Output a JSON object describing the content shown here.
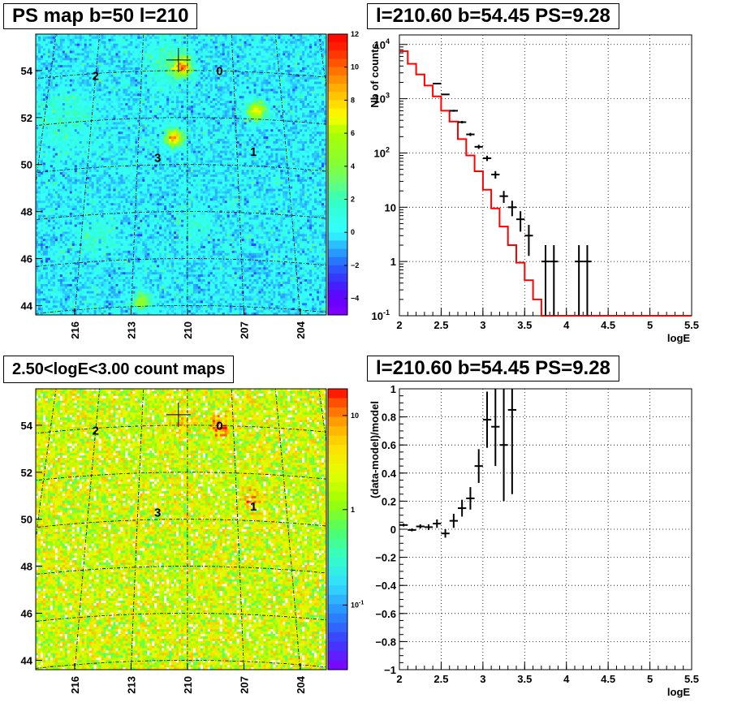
{
  "panels": {
    "tl_title": "PS map b=50 l=210",
    "tr_title": "l=210.60 b=54.45 PS=9.28",
    "bl_title": "2.50<logE<3.00 count maps",
    "br_title": "l=210.60 b=54.45 PS=9.28"
  },
  "colors": {
    "model_line": "#ff0000",
    "data_points": "#000000",
    "map_background": "#33ffff"
  },
  "chart_data": [
    {
      "type": "heatmap",
      "title": "PS map b=50 l=210",
      "x_ticks": [
        "216",
        "213",
        "210",
        "207",
        "204"
      ],
      "y_ticks": [
        "44",
        "46",
        "48",
        "50",
        "52",
        "54"
      ],
      "colorbar_ticks": [
        "12",
        "10",
        "8",
        "6",
        "4",
        "2",
        "0",
        "−2",
        "−4"
      ],
      "colorbar_range": [
        -5,
        12
      ],
      "regions": [
        {
          "label": "0",
          "l": 207.9,
          "b": 54.0
        },
        {
          "label": "1",
          "l": 206.0,
          "b": 50.6
        },
        {
          "label": "2",
          "l": 216.0,
          "b": 53.9
        },
        {
          "label": "3",
          "l": 211.8,
          "b": 50.3
        }
      ],
      "hotspots": [
        {
          "l": 210.4,
          "b": 54.2,
          "v": 9
        },
        {
          "l": 205.7,
          "b": 52.4,
          "v": 8
        },
        {
          "l": 210.9,
          "b": 51.2,
          "v": 9
        },
        {
          "l": 212.5,
          "b": 44.3,
          "v": 5
        }
      ],
      "marker": {
        "l": 210.6,
        "b": 54.45
      }
    },
    {
      "type": "line",
      "title": "l=210.60 b=54.45 PS=9.28",
      "xlabel": "logE",
      "ylabel": "Nb of counts",
      "x_ticks": [
        "2",
        "2.5",
        "3",
        "3.5",
        "4",
        "4.5",
        "5",
        "5.5"
      ],
      "y_ticks": [
        "10^4",
        "10^3",
        "10^2",
        "10",
        "1",
        "10^-1"
      ],
      "y_log": true,
      "xlim": [
        2,
        5.5
      ],
      "ylim": [
        0.1,
        15000
      ],
      "grid": true,
      "series": [
        {
          "type": "step",
          "x": [
            2.0,
            2.1,
            2.2,
            2.3,
            2.4,
            2.5,
            2.6,
            2.7,
            2.8,
            2.9,
            3.0,
            3.1,
            3.2,
            3.3,
            3.4,
            3.5,
            3.6,
            3.7,
            3.8,
            3.9,
            4.0,
            4.1,
            4.2,
            4.3,
            4.4,
            4.5,
            4.6,
            4.7,
            4.8,
            4.9,
            5.0,
            5.1,
            5.2,
            5.3,
            5.4
          ],
          "values": [
            7500,
            4400,
            2800,
            1750,
            1100,
            600,
            380,
            180,
            90,
            46,
            21,
            9.5,
            4.4,
            2.0,
            0.95,
            0.45,
            0.2,
            0.1,
            0.1,
            0.1,
            0.1,
            0.1,
            0.1,
            0.1,
            0.1,
            0.1,
            0.1,
            0.1,
            0.1,
            0.1,
            0.1,
            0.1,
            0.1,
            0.1,
            0.1
          ]
        },
        {
          "type": "errorbar",
          "x": [
            2.45,
            2.55,
            2.65,
            2.75,
            2.85,
            2.95,
            3.05,
            3.15,
            3.25,
            3.35,
            3.45,
            3.55,
            3.75,
            3.85,
            4.15,
            4.25
          ],
          "values": [
            1900,
            1200,
            600,
            370,
            220,
            130,
            80,
            40,
            16,
            10,
            6,
            3,
            1,
            1,
            1,
            1
          ]
        }
      ]
    },
    {
      "type": "heatmap",
      "title": "2.50<logE<3.00 count maps",
      "x_ticks": [
        "216",
        "213",
        "210",
        "207",
        "204"
      ],
      "y_ticks": [
        "44",
        "46",
        "48",
        "50",
        "52",
        "54"
      ],
      "colorbar_ticks": [
        "10",
        "1",
        "10^-1"
      ],
      "colorbar_log": true,
      "regions": [
        {
          "label": "0",
          "l": 207.9,
          "b": 54.0
        },
        {
          "label": "1",
          "l": 206.0,
          "b": 50.6
        },
        {
          "label": "2",
          "l": 216.0,
          "b": 53.9
        },
        {
          "label": "3",
          "l": 211.8,
          "b": 50.3
        }
      ],
      "marker": {
        "l": 210.6,
        "b": 54.45
      }
    },
    {
      "type": "scatter",
      "title": "l=210.60 b=54.45 PS=9.28",
      "xlabel": "logE",
      "ylabel": "(data-model)/model",
      "x_ticks": [
        "2",
        "2.5",
        "3",
        "3.5",
        "4",
        "4.5",
        "5",
        "5.5"
      ],
      "y_ticks": [
        "1",
        "0.8",
        "0.6",
        "0.4",
        "0.2",
        "0",
        "−0.2",
        "−0.4",
        "−0.6",
        "−0.8",
        "−1"
      ],
      "xlim": [
        2,
        5.5
      ],
      "ylim": [
        -1,
        1
      ],
      "grid": true,
      "series": [
        {
          "x": [
            2.05,
            2.15,
            2.25,
            2.35,
            2.45,
            2.55,
            2.65,
            2.75,
            2.85,
            2.95,
            3.05,
            3.15,
            3.25,
            3.35
          ],
          "values": [
            0.03,
            -0.005,
            0.02,
            0.015,
            0.04,
            -0.03,
            0.06,
            0.15,
            0.22,
            0.45,
            0.78,
            0.73,
            0.6,
            0.85
          ],
          "errors": [
            0.01,
            0.01,
            0.015,
            0.02,
            0.03,
            0.03,
            0.05,
            0.06,
            0.08,
            0.12,
            0.2,
            0.28,
            0.4,
            0.6
          ]
        }
      ]
    }
  ]
}
